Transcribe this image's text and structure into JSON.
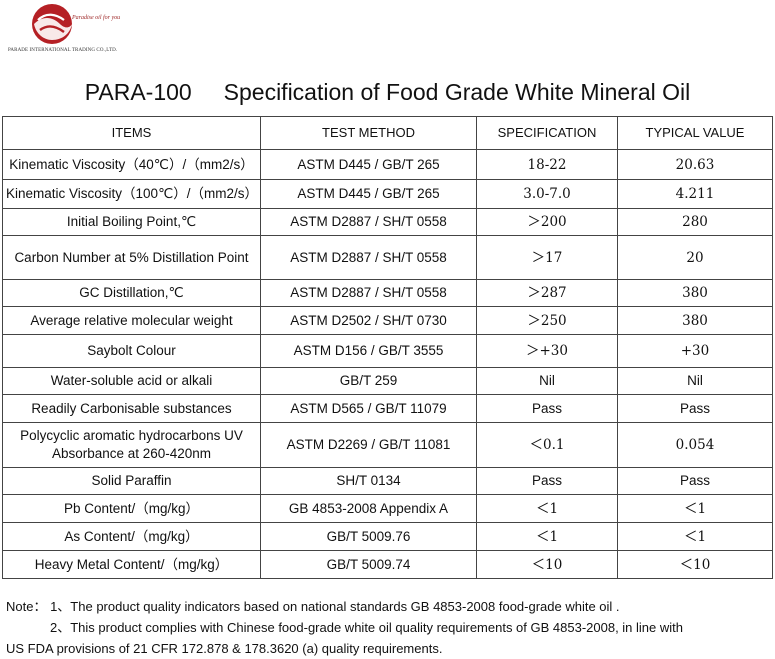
{
  "logo": {
    "tagline": "Paradise oil for you",
    "company": "PARADE INTERNATIONAL TRADING CO.,LTD.",
    "colors": {
      "primary": "#b52025"
    }
  },
  "title": "PARA-100     Specification of Food Grade White Mineral Oil",
  "table": {
    "headers": [
      "ITEMS",
      "TEST METHOD",
      "SPECIFICATION",
      "TYPICAL VALUE"
    ],
    "rows": [
      {
        "item": "Kinematic Viscosity（40℃）/（mm2/s）",
        "method": "ASTM D445 / GB/T 265",
        "spec": "18-22",
        "typical": "20.63",
        "h": 30
      },
      {
        "item": "Kinematic Viscosity（100℃）/（mm2/s）",
        "method": "ASTM D445 / GB/T 265",
        "spec": "3.0-7.0",
        "typical": "4.211",
        "h": 29
      },
      {
        "item": "Initial Boiling Point,℃",
        "method": "ASTM D2887 / SH/T 0558",
        "spec": "＞200",
        "typical": "280",
        "h": 27
      },
      {
        "item": "Carbon Number at 5% Distillation Point",
        "method": "ASTM D2887 / SH/T 0558",
        "spec": "＞17",
        "typical": "20",
        "h": 44
      },
      {
        "item": "GC Distillation,℃",
        "method": "ASTM D2887 / SH/T 0558",
        "spec": "＞287",
        "typical": "380",
        "h": 27
      },
      {
        "item": "Average relative molecular weight",
        "method": "ASTM D2502 / SH/T 0730",
        "spec": "＞250",
        "typical": "380",
        "h": 28
      },
      {
        "item": "Saybolt Colour",
        "method": "ASTM D156 / GB/T 3555",
        "spec": "＞+30",
        "typical": "+30",
        "h": 33
      },
      {
        "item": "Water-soluble acid or alkali",
        "method": "GB/T 259",
        "spec": "Nil",
        "typical": "Nil",
        "h": 27
      },
      {
        "item": "Readily Carbonisable substances",
        "method": "ASTM D565 / GB/T 11079",
        "spec": "Pass",
        "typical": "Pass",
        "h": 28
      },
      {
        "item": "Polycyclic aromatic hydrocarbons UV Absorbance at 260-420nm",
        "method": "ASTM D2269 / GB/T 11081",
        "spec": "＜0.1",
        "typical": "0.054",
        "h": 45
      },
      {
        "item": "Solid Paraffin",
        "method": "SH/T 0134",
        "spec": "Pass",
        "typical": "Pass",
        "h": 27
      },
      {
        "item": "Pb Content/（mg/kg）",
        "method": "GB 4853-2008 Appendix A",
        "spec": "＜1",
        "typical": "＜1",
        "h": 28
      },
      {
        "item": "As Content/（mg/kg）",
        "method": "GB/T 5009.76",
        "spec": "＜1",
        "typical": "＜1",
        "h": 28
      },
      {
        "item": "Heavy Metal Content/（mg/kg）",
        "method": "GB/T 5009.74",
        "spec": "＜10",
        "typical": "＜10",
        "h": 28
      }
    ]
  },
  "notes": {
    "line1": "Note： 1、The product quality indicators based on national standards GB 4853-2008 food-grade white oil .",
    "line2": "2、This product complies with Chinese food-grade white oil quality requirements of GB 4853-2008, in line with",
    "line3": "US FDA provisions of 21 CFR 172.878 & 178.3620 (a) quality requirements."
  }
}
